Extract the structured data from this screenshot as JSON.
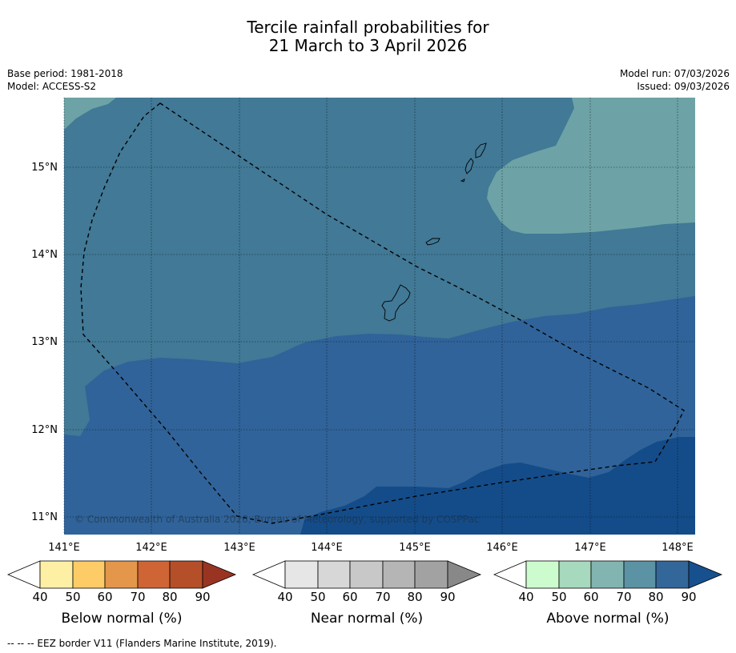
{
  "title": {
    "line1": "Tercile rainfall probabilities for",
    "line2": "21 March to 3 April 2026"
  },
  "meta": {
    "base_period": "Base period: 1981-2018",
    "model": "Model: ACCESS-S2",
    "model_run": "Model run: 07/03/2026",
    "issued": "Issued: 09/03/2026"
  },
  "map": {
    "lat_labels": [
      "15°N",
      "14°N",
      "13°N",
      "12°N",
      "11°N"
    ],
    "lon_labels": [
      "141°E",
      "142°E",
      "143°E",
      "144°E",
      "145°E",
      "146°E",
      "147°E",
      "148°E"
    ],
    "copyright": "© Commonwealth of Australia 2026, Bureau of Meteorology, supported by COSPPac",
    "region_colors": {
      "above_60_70": "#6da3a6",
      "above_70_80": "#417996",
      "above_80_90": "#306399",
      "above_90_plus": "#144c89"
    }
  },
  "colorbars": [
    {
      "label": "Below normal (%)",
      "ticks": [
        "40",
        "50",
        "60",
        "70",
        "80",
        "90"
      ],
      "colors": [
        "#ffffff",
        "#fdefa4",
        "#fdcc66",
        "#e4964b",
        "#cf6535",
        "#b44f2a",
        "#9a3422"
      ]
    },
    {
      "label": "Near normal (%)",
      "ticks": [
        "40",
        "50",
        "60",
        "70",
        "80",
        "90"
      ],
      "colors": [
        "#ffffff",
        "#e6e6e6",
        "#d7d7d7",
        "#c8c8c8",
        "#b5b5b5",
        "#a2a2a2",
        "#888888"
      ]
    },
    {
      "label": "Above normal (%)",
      "ticks": [
        "40",
        "50",
        "60",
        "70",
        "80",
        "90"
      ],
      "colors": [
        "#ffffff",
        "#ccfccd",
        "#a6d9be",
        "#82b5b2",
        "#5b93a4",
        "#336699",
        "#17508e"
      ]
    }
  ],
  "footnote": "--  --  -- EEZ border V11 (Flanders Marine Institute, 2019)."
}
